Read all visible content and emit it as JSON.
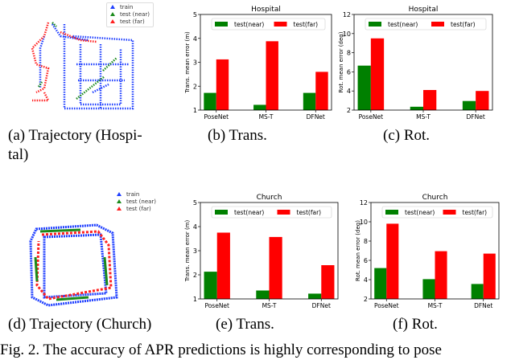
{
  "trajectories": [
    {
      "legend": [
        "train",
        "test (near)",
        "test (far)"
      ],
      "colors": [
        "#1f3fff",
        "#1a8a1a",
        "#ff2020"
      ],
      "caption": "(a)  Trajectory  (Hospi-",
      "caption2": "tal)"
    },
    {
      "legend": [
        "train",
        "test (near)",
        "test (far)"
      ],
      "colors": [
        "#1f3fff",
        "#1a8a1a",
        "#ff2020"
      ],
      "caption": "(d)  Trajectory (Church)"
    }
  ],
  "captions": {
    "b": "(b)  Trans.",
    "c": "(c)  Rot.",
    "e": "(e)  Trans.",
    "f": "(f)  Rot."
  },
  "figure_caption": "Fig. 2.   The accuracy of APR predictions is highly corresponding to pose",
  "chart_data": [
    {
      "type": "bar",
      "title": "Hospital",
      "ylabel": "Trans. mean error (m)",
      "categories": [
        "PoseNet",
        "MS-T",
        "DFNet"
      ],
      "ylim": [
        1,
        5
      ],
      "yticks": [
        1,
        2,
        3,
        4,
        5
      ],
      "legend_position": "top",
      "series": [
        {
          "name": "test(near)",
          "color": "#008000",
          "values": [
            1.72,
            1.22,
            1.72
          ]
        },
        {
          "name": "test(far)",
          "color": "#ff0000",
          "values": [
            3.12,
            3.88,
            2.6
          ]
        }
      ]
    },
    {
      "type": "bar",
      "title": "Hospital",
      "ylabel": "Rot. mean error (deg)",
      "categories": [
        "PoseNet",
        "MS-T",
        "DFNet"
      ],
      "ylim": [
        2,
        12
      ],
      "yticks": [
        2,
        4,
        6,
        8,
        10,
        12
      ],
      "legend_position": "top",
      "series": [
        {
          "name": "test(near)",
          "color": "#008000",
          "values": [
            6.65,
            2.35,
            2.95
          ]
        },
        {
          "name": "test(far)",
          "color": "#ff0000",
          "values": [
            9.5,
            4.1,
            4.0
          ]
        }
      ]
    },
    {
      "type": "bar",
      "title": "Church",
      "ylabel": "Trans. mean error (m)",
      "categories": [
        "PoseNet",
        "MS-T",
        "DFNet"
      ],
      "ylim": [
        1,
        5
      ],
      "yticks": [
        1,
        2,
        3,
        4,
        5
      ],
      "legend_position": "top",
      "series": [
        {
          "name": "test(near)",
          "color": "#008000",
          "values": [
            2.13,
            1.35,
            1.22
          ]
        },
        {
          "name": "test(far)",
          "color": "#ff0000",
          "values": [
            3.75,
            3.57,
            2.4
          ]
        }
      ]
    },
    {
      "type": "bar",
      "title": "Church",
      "ylabel": "Rot. mean error (deg)",
      "categories": [
        "PoseNet",
        "MS-T",
        "DFNet"
      ],
      "ylim": [
        2,
        12
      ],
      "yticks": [
        2,
        4,
        6,
        8,
        10,
        12
      ],
      "legend_position": "top",
      "series": [
        {
          "name": "test(near)",
          "color": "#008000",
          "values": [
            5.2,
            4.05,
            3.55
          ]
        },
        {
          "name": "test(far)",
          "color": "#ff0000",
          "values": [
            9.8,
            6.95,
            6.7
          ]
        }
      ]
    }
  ]
}
